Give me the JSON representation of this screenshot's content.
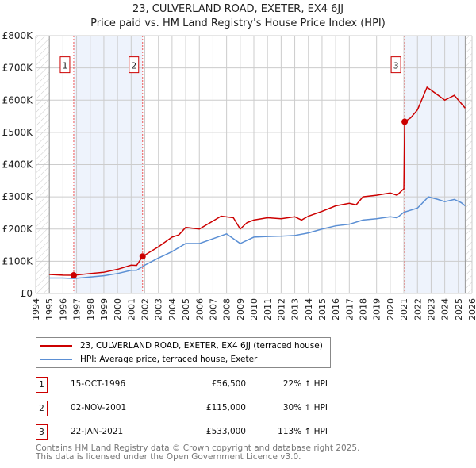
{
  "chart_data": {
    "type": "line",
    "title": "23, CULVERLAND ROAD, EXETER, EX4 6JJ",
    "subtitle": "Price paid vs. HM Land Registry's House Price Index (HPI)",
    "xlim": [
      1994,
      2026
    ],
    "ylim": [
      0,
      800000
    ],
    "x_ticks": [
      "1994",
      "1995",
      "1996",
      "1997",
      "1998",
      "1999",
      "2000",
      "2001",
      "2002",
      "2003",
      "2004",
      "2005",
      "2006",
      "2007",
      "2008",
      "2009",
      "2010",
      "2011",
      "2012",
      "2013",
      "2014",
      "2015",
      "2016",
      "2017",
      "2018",
      "2019",
      "2020",
      "2021",
      "2022",
      "2023",
      "2024",
      "2025",
      "2026"
    ],
    "y_ticks": [
      {
        "v": 0,
        "label": "£0"
      },
      {
        "v": 100000,
        "label": "£100K"
      },
      {
        "v": 200000,
        "label": "£200K"
      },
      {
        "v": 300000,
        "label": "£300K"
      },
      {
        "v": 400000,
        "label": "£400K"
      },
      {
        "v": 500000,
        "label": "£500K"
      },
      {
        "v": 600000,
        "label": "£600K"
      },
      {
        "v": 700000,
        "label": "£700K"
      },
      {
        "v": 800000,
        "label": "£800K"
      }
    ],
    "series": [
      {
        "name": "23, CULVERLAND ROAD, EXETER, EX4 6JJ (terraced house)",
        "color": "#cc0000",
        "x": [
          1995,
          1996,
          1996.79,
          1998,
          1999,
          2000,
          2001,
          2001.4,
          2001.84,
          2003,
          2004,
          2004.5,
          2005,
          2006,
          2007,
          2007.6,
          2008.5,
          2009,
          2009.5,
          2010,
          2011,
          2012,
          2013,
          2013.5,
          2014,
          2015,
          2016,
          2017,
          2017.5,
          2018,
          2019,
          2020,
          2020.5,
          2021.0,
          2021.06,
          2021.5,
          2022,
          2022.3,
          2022.7,
          2023.2,
          2024,
          2024.7,
          2025.1,
          2025.5
        ],
        "y": [
          59000,
          57000,
          56500,
          62000,
          66000,
          75000,
          88000,
          87000,
          115000,
          145000,
          175000,
          182000,
          205000,
          200000,
          225000,
          240000,
          235000,
          200000,
          220000,
          228000,
          235000,
          232000,
          238000,
          228000,
          240000,
          255000,
          272000,
          280000,
          275000,
          300000,
          305000,
          312000,
          305000,
          325000,
          533000,
          545000,
          570000,
          600000,
          640000,
          625000,
          600000,
          615000,
          595000,
          575000
        ]
      },
      {
        "name": "HPI: Average price, terraced house, Exeter",
        "color": "#5b8fd4",
        "x": [
          1995,
          1996,
          1996.79,
          1998,
          1999,
          2000,
          2001,
          2001.4,
          2002,
          2003,
          2004,
          2005,
          2006,
          2007,
          2008,
          2009,
          2010,
          2011,
          2012,
          2013,
          2014,
          2015,
          2016,
          2017,
          2018,
          2019,
          2020,
          2020.5,
          2021,
          2022,
          2022.8,
          2023.5,
          2024,
          2024.7,
          2025.2,
          2025.5
        ],
        "y": [
          48000,
          48000,
          46500,
          51000,
          55000,
          62000,
          72000,
          72000,
          88000,
          110000,
          130000,
          155000,
          155000,
          170000,
          185000,
          155000,
          175000,
          177000,
          178000,
          180000,
          188000,
          200000,
          210000,
          215000,
          228000,
          232000,
          238000,
          235000,
          252000,
          265000,
          300000,
          292000,
          285000,
          292000,
          282000,
          272000
        ]
      }
    ],
    "sales": [
      {
        "label": "1",
        "x": 1996.79,
        "y": 56500
      },
      {
        "label": "2",
        "x": 2001.84,
        "y": 115000
      },
      {
        "label": "3",
        "x": 2021.06,
        "y": 533000
      }
    ],
    "data_end": 2025.5,
    "legend_position": "below"
  },
  "legend": [
    "23, CULVERLAND ROAD, EXETER, EX4 6JJ (terraced house)",
    "HPI: Average price, terraced house, Exeter"
  ],
  "transactions": [
    {
      "num": "1",
      "date": "15-OCT-1996",
      "price": "£56,500",
      "hpi": "22% ↑ HPI"
    },
    {
      "num": "2",
      "date": "02-NOV-2001",
      "price": "£115,000",
      "hpi": "30% ↑ HPI"
    },
    {
      "num": "3",
      "date": "22-JAN-2021",
      "price": "£533,000",
      "hpi": "113% ↑ HPI"
    }
  ],
  "footer": [
    "Contains HM Land Registry data © Crown copyright and database right 2025.",
    "This data is licensed under the Open Government Licence v3.0."
  ]
}
